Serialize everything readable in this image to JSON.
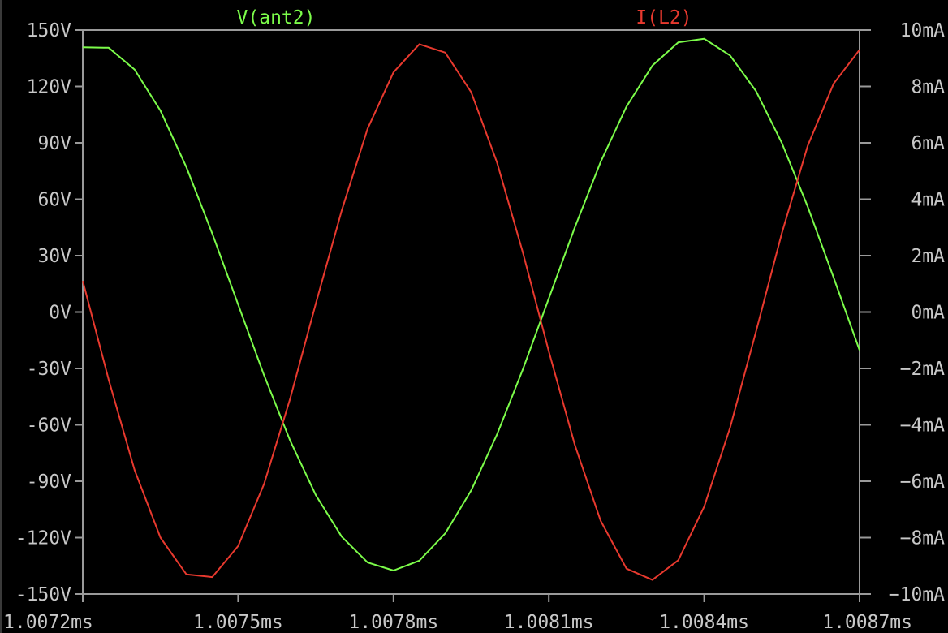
{
  "chart_data": {
    "type": "line",
    "x_unit": "ms",
    "x_range": [
      1.0072,
      1.0087
    ],
    "x_ticks": [
      1.0072,
      1.0075,
      1.0078,
      1.0081,
      1.0084,
      1.0087
    ],
    "x_tick_labels": [
      "1.0072ms",
      "1.0075ms",
      "1.0078ms",
      "1.0081ms",
      "1.0084ms",
      "1.0087ms"
    ],
    "y_left": {
      "range": [
        -150,
        150
      ],
      "ticks": [
        150,
        120,
        90,
        60,
        30,
        0,
        -30,
        -60,
        -90,
        -120,
        -150
      ],
      "tick_labels": [
        "150V",
        "120V",
        "90V",
        "60V",
        "30V",
        "0V",
        "-30V",
        "-60V",
        "-90V",
        "-120V",
        "-150V"
      ]
    },
    "y_right": {
      "range": [
        -10,
        10
      ],
      "ticks": [
        10,
        8,
        6,
        4,
        2,
        0,
        -2,
        -4,
        -6,
        -8,
        -10
      ],
      "tick_labels": [
        "10mA",
        "8mA",
        "6mA",
        "4mA",
        "2mA",
        "0mA",
        "−2mA",
        "−4mA",
        "−6mA",
        "−8mA",
        "−10mA"
      ]
    },
    "grid": false,
    "legend_placement": "top",
    "series": [
      {
        "name": "V(ant2)",
        "axis": "left",
        "unit": "V",
        "color": "#7CFC4A",
        "x": [
          1.0072,
          1.00725,
          1.0073,
          1.00735,
          1.0074,
          1.00745,
          1.0075,
          1.00755,
          1.0076,
          1.00765,
          1.0077,
          1.00775,
          1.0078,
          1.00785,
          1.0079,
          1.00795,
          1.008,
          1.00805,
          1.0081,
          1.00815,
          1.0082,
          1.00825,
          1.0083,
          1.00835,
          1.0084,
          1.00845,
          1.0085,
          1.00855,
          1.0086,
          1.00865,
          1.0087
        ],
        "y": [
          140.8,
          140.6,
          129.0,
          107.1,
          77.1,
          41.8,
          4.0,
          -33.6,
          -68.1,
          -97.4,
          -119.5,
          -133.2,
          -137.5,
          -132.2,
          -117.7,
          -94.9,
          -65.1,
          -30.4,
          7.3,
          44.9,
          79.8,
          109.3,
          131.1,
          143.5,
          145.4,
          136.5,
          117.6,
          89.9,
          56.0,
          18.3,
          -20.3
        ]
      },
      {
        "name": "I(L2)",
        "axis": "right",
        "unit": "mA",
        "color": "#E8392E",
        "x": [
          1.0072,
          1.00725,
          1.0073,
          1.00735,
          1.0074,
          1.00745,
          1.0075,
          1.00755,
          1.0076,
          1.00765,
          1.0077,
          1.00775,
          1.0078,
          1.00785,
          1.0079,
          1.00795,
          1.008,
          1.00805,
          1.0081,
          1.00815,
          1.0082,
          1.00825,
          1.0083,
          1.00835,
          1.0084,
          1.00845,
          1.0085,
          1.00855,
          1.0086,
          1.00865,
          1.0087
        ],
        "y": [
          1.1,
          -2.4,
          -5.6,
          -8.0,
          -9.3,
          -9.4,
          -8.3,
          -6.1,
          -3.1,
          0.3,
          3.6,
          6.5,
          8.5,
          9.5,
          9.2,
          7.8,
          5.3,
          2.1,
          -1.4,
          -4.7,
          -7.4,
          -9.1,
          -9.5,
          -8.8,
          -6.9,
          -4.1,
          -0.7,
          2.8,
          5.9,
          8.1,
          9.3
        ]
      }
    ]
  }
}
